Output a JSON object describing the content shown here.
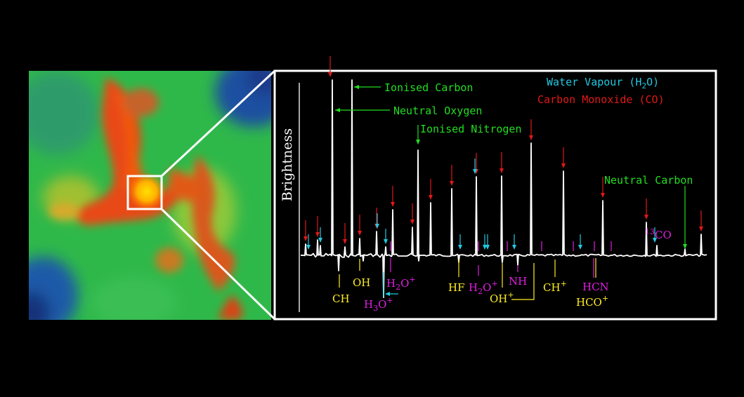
{
  "colors": {
    "water": "#22c8e0",
    "co": "#e01818",
    "green_label": "#22dd22",
    "yellow_label": "#ffee22",
    "magenta_label": "#e020e0",
    "frame": "#ffffff"
  },
  "legend": {
    "water_prefix": "Water Vapour (H",
    "water_sub": "2",
    "water_suffix": "O)",
    "co": "Carbon Monoxide (CO)"
  },
  "ylabel": "Brightness",
  "lines": {
    "ionised_carbon": "Ionised Carbon",
    "neutral_oxygen": "Neutral Oxygen",
    "ionised_nitrogen": "Ionised Nitrogen",
    "neutral_carbon": "Neutral Carbon"
  },
  "molecules": {
    "ch": "CH",
    "oh": "OH",
    "h3o_base": "H",
    "h3o_sub": "3",
    "h3o_mid": "O",
    "h3o_sup": "+",
    "h2o_base": "H",
    "h2o_sub": "2",
    "h2o_mid": "O",
    "h2o_sup": "+",
    "hf": "HF",
    "nh": "NH",
    "oh_plus": "OH",
    "oh_plus_sup": "+",
    "ch_plus": "CH",
    "ch_plus_sup": "+",
    "hcn": "HCN",
    "hco_plus": "HCO",
    "hco_plus_sup": "+",
    "co13_sup": "13",
    "co13": "CO"
  },
  "spectrum": {
    "water_arrows": [
      439,
      456,
      549,
      537,
      655,
      676,
      690,
      694,
      732,
      826,
      932
    ],
    "co_arrows": [
      435,
      452,
      470,
      491,
      512,
      536,
      559,
      587,
      613,
      643,
      678,
      714,
      756,
      802,
      858,
      920,
      998
    ],
    "magenta_ticks": [
      556,
      681,
      722,
      771,
      816,
      846,
      870
    ],
    "peaks": [
      {
        "x": 435,
        "h": 16
      },
      {
        "x": 452,
        "h": 22
      },
      {
        "x": 456,
        "h": 14
      },
      {
        "x": 473,
        "h": 250
      },
      {
        "x": 491,
        "h": 12
      },
      {
        "x": 501,
        "h": 250
      },
      {
        "x": 512,
        "h": 24
      },
      {
        "x": 536,
        "h": 34
      },
      {
        "x": 549,
        "h": 12
      },
      {
        "x": 559,
        "h": 65
      },
      {
        "x": 587,
        "h": 40
      },
      {
        "x": 595,
        "h": 150
      },
      {
        "x": 613,
        "h": 75
      },
      {
        "x": 643,
        "h": 95
      },
      {
        "x": 678,
        "h": 112
      },
      {
        "x": 714,
        "h": 113
      },
      {
        "x": 756,
        "h": 160
      },
      {
        "x": 802,
        "h": 120
      },
      {
        "x": 858,
        "h": 78
      },
      {
        "x": 920,
        "h": 47
      },
      {
        "x": 935,
        "h": 14
      },
      {
        "x": 975,
        "h": 9
      },
      {
        "x": 998,
        "h": 30
      }
    ],
    "dips": [
      {
        "x": 482,
        "d": 22
      },
      {
        "x": 517,
        "d": 8
      },
      {
        "x": 546,
        "d": 60
      },
      {
        "x": 653,
        "d": 10
      },
      {
        "x": 715,
        "d": 10
      },
      {
        "x": 737,
        "d": 14
      },
      {
        "x": 596,
        "d": 8
      }
    ]
  }
}
